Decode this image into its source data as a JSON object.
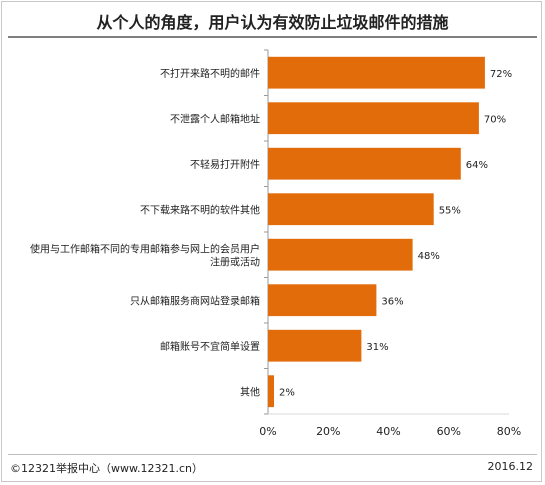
{
  "chart_data": {
    "type": "bar",
    "orientation": "horizontal",
    "title": "从个人的角度，用户认为有效防止垃圾邮件的措施",
    "categories": [
      "不打开来路不明的邮件",
      "不泄露个人邮箱地址",
      "不轻易打开附件",
      "不下载来路不明的软件其他",
      "使用与工作邮箱不同的专用邮箱参与网上的会员用户注册或活动",
      "只从邮箱服务商网站登录邮箱",
      "邮箱账号不宜简单设置",
      "其他"
    ],
    "category_lines": [
      [
        "不打开来路不明的邮件"
      ],
      [
        "不泄露个人邮箱地址"
      ],
      [
        "不轻易打开附件"
      ],
      [
        "不下载来路不明的软件其他"
      ],
      [
        "使用与工作邮箱不同的专用邮箱参与网上的会员用户",
        "注册或活动"
      ],
      [
        "只从邮箱服务商网站登录邮箱"
      ],
      [
        "邮箱账号不宜简单设置"
      ],
      [
        "其他"
      ]
    ],
    "values": [
      72,
      70,
      64,
      55,
      48,
      36,
      31,
      2
    ],
    "value_labels": [
      "72%",
      "70%",
      "64%",
      "55%",
      "48%",
      "36%",
      "31%",
      "2%"
    ],
    "xlim": [
      0,
      80
    ],
    "xticks": [
      0,
      20,
      40,
      60,
      80
    ],
    "xtick_labels": [
      "0%",
      "20%",
      "40%",
      "60%",
      "80%"
    ],
    "xlabel": "",
    "ylabel": "",
    "grid": false,
    "legend": "none",
    "bar_color": "#E36C0A"
  },
  "footer": {
    "source": "©12321举报中心（www.12321.cn）",
    "date": "2016.12"
  }
}
